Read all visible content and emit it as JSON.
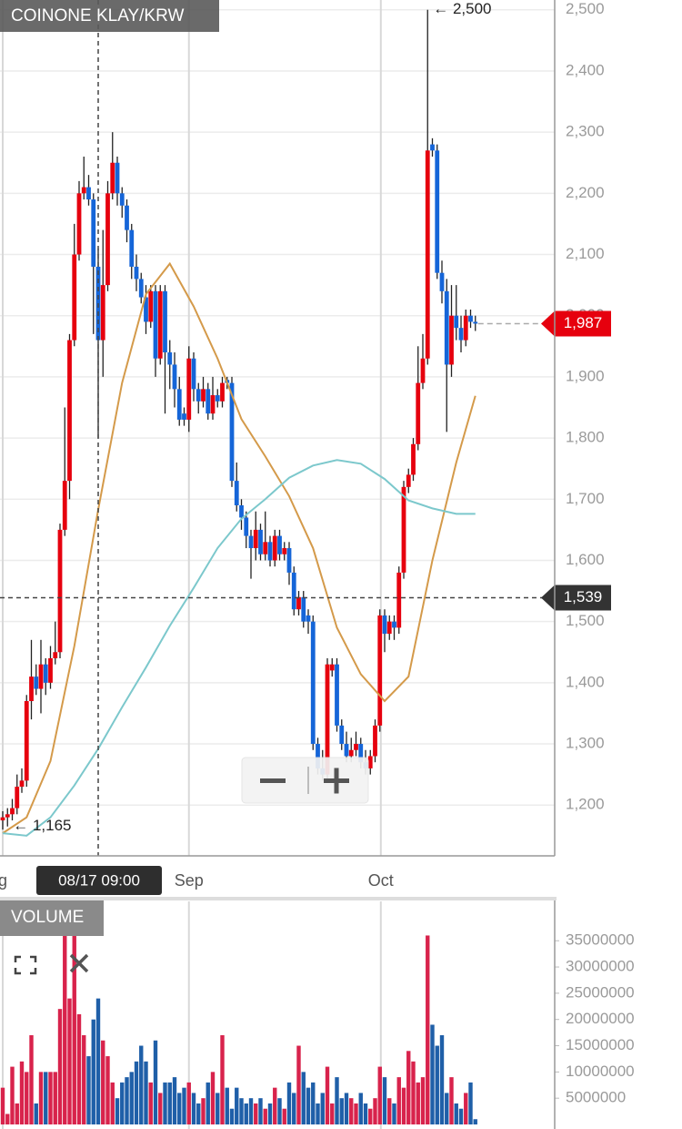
{
  "chart_data": [
    {
      "type": "candlestick",
      "title": "COINONE KLAY/KRW",
      "up_color": "#e6000e",
      "down_color": "#1565d8",
      "ylim": [
        1117,
        2516
      ],
      "yticks": [
        {
          "value": 1200,
          "label": "1,200"
        },
        {
          "value": 1300,
          "label": "1,300"
        },
        {
          "value": 1400,
          "label": "1,400"
        },
        {
          "value": 1500,
          "label": "1,500"
        },
        {
          "value": 1600,
          "label": "1,600"
        },
        {
          "value": 1700,
          "label": "1,700"
        },
        {
          "value": 1800,
          "label": "1,800"
        },
        {
          "value": 1900,
          "label": "1,900"
        },
        {
          "value": 2000,
          "label": "2,000"
        },
        {
          "value": 2100,
          "label": "2,100"
        },
        {
          "value": 2200,
          "label": "2,200"
        },
        {
          "value": 2300,
          "label": "2,300"
        },
        {
          "value": 2400,
          "label": "2,400"
        },
        {
          "value": 2500,
          "label": "2,500"
        }
      ],
      "xticks": [
        {
          "value": 0,
          "label": "g"
        },
        {
          "value": 39,
          "label": "Sep"
        },
        {
          "value": 79.2,
          "label": "Oct"
        }
      ],
      "grid": true,
      "open": [
        1175,
        1180,
        1185,
        1195,
        1230,
        1240,
        1370,
        1410,
        1390,
        1430,
        1400,
        1440,
        1450,
        1650,
        1730,
        1960,
        2100,
        2200,
        2210,
        2190,
        2080,
        1960,
        2050,
        2200,
        2250,
        2200,
        2180,
        2140,
        2080,
        2060,
        2030,
        1990,
        2040,
        1930,
        2040,
        1940,
        1920,
        1880,
        1840,
        1830,
        1930,
        1880,
        1860,
        1880,
        1840,
        1870,
        1860,
        1895,
        1890,
        1730,
        1690,
        1670,
        1640,
        1620,
        1650,
        1610,
        1630,
        1600,
        1640,
        1610,
        1620,
        1580,
        1520,
        1540,
        1510,
        1500,
        1300,
        1260,
        1250,
        1420,
        1430,
        1330,
        1300,
        1280,
        1290,
        1300,
        1270,
        1260,
        1280,
        1330,
        1510,
        1480,
        1500,
        1490,
        1580,
        1720,
        1740,
        1790,
        1890,
        1930,
        2280,
        2270,
        2070,
        2040,
        1920,
        2000,
        1980,
        1960,
        2000,
        1990
      ],
      "high": [
        1190,
        1195,
        1210,
        1250,
        1260,
        1380,
        1470,
        1430,
        1470,
        1440,
        1460,
        1500,
        1660,
        1850,
        1970,
        2150,
        2220,
        2260,
        2230,
        2200,
        2110,
        2140,
        2220,
        2300,
        2260,
        2210,
        2190,
        2150,
        2100,
        2070,
        2050,
        2050,
        2050,
        2050,
        2050,
        1960,
        1940,
        1900,
        1850,
        1950,
        1940,
        1890,
        1900,
        1890,
        1900,
        1880,
        1900,
        1900,
        1900,
        1760,
        1700,
        1680,
        1650,
        1680,
        1660,
        1680,
        1640,
        1650,
        1650,
        1630,
        1630,
        1590,
        1550,
        1550,
        1520,
        1510,
        1310,
        1290,
        1440,
        1440,
        1440,
        1340,
        1320,
        1310,
        1320,
        1310,
        1290,
        1290,
        1340,
        1520,
        1520,
        1510,
        1510,
        1590,
        1730,
        1750,
        1800,
        1950,
        1970,
        2500,
        2290,
        2280,
        2090,
        2060,
        2050,
        2050,
        2000,
        2010,
        2010,
        2000
      ],
      "low": [
        1160,
        1165,
        1175,
        1185,
        1220,
        1230,
        1340,
        1380,
        1350,
        1380,
        1390,
        1430,
        1440,
        1640,
        1700,
        1950,
        2090,
        2190,
        2180,
        1970,
        1800,
        1900,
        2040,
        2190,
        2180,
        2160,
        2120,
        2060,
        2040,
        2020,
        1970,
        1980,
        1900,
        1920,
        1840,
        1880,
        1850,
        1820,
        1820,
        1810,
        1860,
        1840,
        1850,
        1830,
        1830,
        1850,
        1850,
        1880,
        1720,
        1680,
        1650,
        1620,
        1570,
        1600,
        1600,
        1600,
        1590,
        1590,
        1600,
        1600,
        1560,
        1510,
        1510,
        1490,
        1480,
        1290,
        1250,
        1240,
        1240,
        1410,
        1320,
        1290,
        1270,
        1270,
        1280,
        1260,
        1250,
        1250,
        1270,
        1320,
        1450,
        1470,
        1470,
        1480,
        1570,
        1710,
        1730,
        1780,
        1880,
        1920,
        2260,
        2060,
        2020,
        1810,
        1900,
        1960,
        1940,
        1950,
        1980,
        1975
      ],
      "close": [
        1180,
        1185,
        1195,
        1230,
        1240,
        1370,
        1410,
        1390,
        1430,
        1400,
        1440,
        1450,
        1650,
        1730,
        1960,
        2100,
        2200,
        2210,
        2190,
        2080,
        1960,
        2050,
        2200,
        2250,
        2200,
        2180,
        2140,
        2080,
        2060,
        2030,
        1990,
        2040,
        1930,
        2040,
        1940,
        1920,
        1880,
        1830,
        1830,
        1930,
        1880,
        1860,
        1880,
        1840,
        1870,
        1860,
        1890,
        1890,
        1730,
        1690,
        1670,
        1640,
        1620,
        1650,
        1610,
        1630,
        1600,
        1640,
        1610,
        1620,
        1580,
        1520,
        1540,
        1500,
        1500,
        1300,
        1260,
        1250,
        1430,
        1430,
        1330,
        1300,
        1280,
        1290,
        1300,
        1270,
        1260,
        1280,
        1330,
        1510,
        1480,
        1500,
        1490,
        1580,
        1720,
        1740,
        1790,
        1890,
        1930,
        2270,
        2270,
        2070,
        2040,
        1920,
        2000,
        1980,
        1960,
        2000,
        1990,
        1987
      ],
      "series": [
        {
          "color": "#d49a4a",
          "x": [
            0,
            5,
            10,
            15,
            20,
            25,
            30,
            35,
            40,
            45,
            50,
            55,
            60,
            65,
            70,
            75,
            80,
            85,
            90,
            95,
            99
          ],
          "values": [
            1154,
            1180,
            1272,
            1460,
            1683,
            1890,
            2035,
            2085,
            2015,
            1930,
            1831,
            1770,
            1705,
            1620,
            1490,
            1414,
            1370,
            1410,
            1600,
            1760,
            1869
          ]
        },
        {
          "color": "#7cc8cc",
          "x": [
            0,
            5,
            10,
            15,
            20,
            25,
            30,
            35,
            40,
            45,
            50,
            55,
            60,
            65,
            70,
            75,
            80,
            85,
            90,
            95,
            99
          ],
          "values": [
            1154,
            1150,
            1180,
            1232,
            1292,
            1360,
            1425,
            1493,
            1555,
            1620,
            1668,
            1700,
            1735,
            1755,
            1764,
            1758,
            1733,
            1698,
            1685,
            1676,
            1676
          ]
        }
      ],
      "annotations": [
        {
          "index": 89,
          "value": 2500,
          "label": "← 2,500"
        },
        {
          "index": 1,
          "value": 1165,
          "label": "← 1,165"
        }
      ],
      "last": {
        "value": 1987,
        "label": "1,987"
      },
      "crosshair": {
        "index": 20,
        "time_label": "08/17 09:00",
        "price": {
          "value": 1539,
          "label": "1,539"
        }
      }
    },
    {
      "type": "bar",
      "title": "VOLUME",
      "up_color": "#d8234c",
      "down_color": "#1f5fa8",
      "ylim": [
        0,
        42500000
      ],
      "yticks": [
        5000000,
        10000000,
        15000000,
        20000000,
        25000000,
        30000000,
        35000000
      ],
      "values": [
        7000000,
        2000000,
        11000000,
        4000000,
        12000000,
        10000000,
        17000000,
        4000000,
        10000000,
        10000000,
        10000000,
        10000000,
        22000000,
        37000000,
        24000000,
        36000000,
        21000000,
        17000000,
        13000000,
        20000000,
        24000000,
        16000000,
        13000000,
        8000000,
        5000000,
        8000000,
        9000000,
        10000000,
        12000000,
        15000000,
        12000000,
        8000000,
        16000000,
        6000000,
        8000000,
        8000000,
        9000000,
        6000000,
        7000000,
        8000000,
        6000000,
        4000000,
        5000000,
        8000000,
        10000000,
        6000000,
        17000000,
        7000000,
        3000000,
        7000000,
        5000000,
        4000000,
        5000000,
        4000000,
        5000000,
        3000000,
        4000000,
        7000000,
        5000000,
        3000000,
        8000000,
        6000000,
        15000000,
        10000000,
        7000000,
        8000000,
        4000000,
        6000000,
        11000000,
        4000000,
        9000000,
        5000000,
        6000000,
        5000000,
        4000000,
        6000000,
        4000000,
        3000000,
        5000000,
        11000000,
        9000000,
        5000000,
        4000000,
        9000000,
        7000000,
        14000000,
        12000000,
        8000000,
        9000000,
        36000000,
        19000000,
        15000000,
        17000000,
        6000000,
        9000000,
        4000000,
        3000000,
        6000000,
        8000000,
        1000000
      ]
    }
  ]
}
